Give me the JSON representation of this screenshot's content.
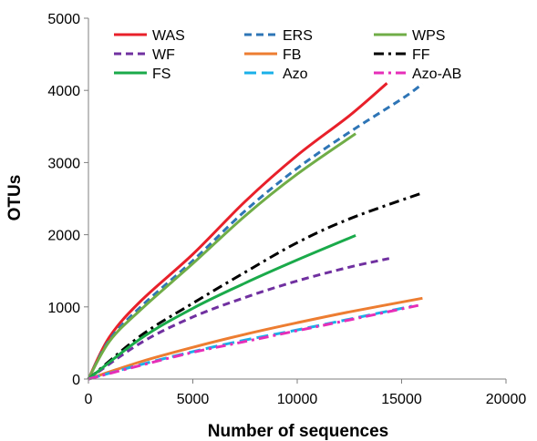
{
  "chart_data": {
    "type": "line",
    "title": "",
    "xlabel": "Number of sequences",
    "ylabel": "OTUs",
    "xlim": [
      0,
      20000
    ],
    "ylim": [
      0,
      5000
    ],
    "xticks": [
      0,
      5000,
      10000,
      15000,
      20000
    ],
    "yticks": [
      0,
      1000,
      2000,
      3000,
      4000,
      5000
    ],
    "grid": false,
    "legend_position": "top",
    "series": [
      {
        "name": "WAS",
        "color": "#e8202a",
        "dash": "solid",
        "x": [
          0,
          1000,
          2500,
          5000,
          7500,
          10000,
          12500,
          14300
        ],
        "y": [
          0,
          580,
          1080,
          1730,
          2460,
          3100,
          3650,
          4100
        ]
      },
      {
        "name": "ERS",
        "color": "#2e75b6",
        "dash": "dash",
        "x": [
          0,
          1000,
          2500,
          5000,
          7500,
          10000,
          12500,
          15000,
          16000
        ],
        "y": [
          0,
          540,
          1000,
          1640,
          2330,
          2920,
          3420,
          3880,
          4090
        ]
      },
      {
        "name": "WPS",
        "color": "#70ad47",
        "dash": "solid",
        "x": [
          0,
          1000,
          2500,
          5000,
          7500,
          10000,
          12800
        ],
        "y": [
          0,
          520,
          960,
          1600,
          2260,
          2840,
          3400
        ]
      },
      {
        "name": "WF",
        "color": "#7030a0",
        "dash": "dash",
        "x": [
          0,
          2500,
          5000,
          7500,
          10000,
          12500,
          14400
        ],
        "y": [
          0,
          500,
          860,
          1130,
          1360,
          1550,
          1670
        ]
      },
      {
        "name": "FB",
        "color": "#ed7d31",
        "dash": "solid",
        "x": [
          0,
          2500,
          5000,
          7500,
          10000,
          12500,
          16000
        ],
        "y": [
          0,
          240,
          440,
          620,
          780,
          930,
          1120
        ]
      },
      {
        "name": "FF",
        "color": "#000000",
        "dash": "dashdot",
        "x": [
          0,
          2500,
          5000,
          7500,
          10000,
          12500,
          16000
        ],
        "y": [
          0,
          600,
          1050,
          1480,
          1890,
          2220,
          2580
        ]
      },
      {
        "name": "FS",
        "color": "#1aaa4a",
        "dash": "solid",
        "x": [
          0,
          2500,
          5000,
          7500,
          10000,
          12800
        ],
        "y": [
          0,
          560,
          980,
          1330,
          1650,
          1990
        ]
      },
      {
        "name": "Azo",
        "color": "#1ab0e8",
        "dash": "longdash",
        "x": [
          0,
          2500,
          5000,
          7500,
          10000,
          12500,
          15500
        ],
        "y": [
          0,
          200,
          380,
          540,
          680,
          830,
          1010
        ]
      },
      {
        "name": "Azo-AB",
        "color": "#e62eb8",
        "dash": "dashdot",
        "x": [
          0,
          2500,
          5000,
          7500,
          10000,
          12500,
          15800
        ],
        "y": [
          0,
          190,
          370,
          520,
          670,
          820,
          1020
        ]
      }
    ]
  }
}
